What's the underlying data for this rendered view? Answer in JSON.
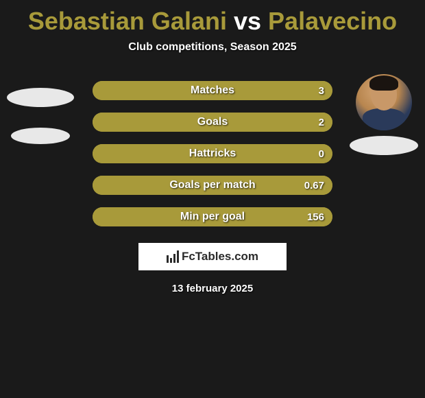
{
  "title": {
    "player1": "Sebastian Galani",
    "vs": "vs",
    "player2": "Palavecino",
    "color_player": "#a89a3a",
    "color_vs": "#ffffff"
  },
  "subtitle": "Club competitions, Season 2025",
  "stats": [
    {
      "label": "Matches",
      "value_left": "",
      "value_right": "3",
      "fill_color": "#a89a3a",
      "fill_width_pct": 100
    },
    {
      "label": "Goals",
      "value_left": "",
      "value_right": "2",
      "fill_color": "#a89a3a",
      "fill_width_pct": 100
    },
    {
      "label": "Hattricks",
      "value_left": "",
      "value_right": "0",
      "fill_color": "#a89a3a",
      "fill_width_pct": 100
    },
    {
      "label": "Goals per match",
      "value_left": "",
      "value_right": "0.67",
      "fill_color": "#a89a3a",
      "fill_width_pct": 100
    },
    {
      "label": "Min per goal",
      "value_left": "",
      "value_right": "156",
      "fill_color": "#a89a3a",
      "fill_width_pct": 100
    }
  ],
  "logo": {
    "text": "FcTables.com",
    "bar_heights": [
      11,
      7,
      13,
      18
    ]
  },
  "date": "13 february 2025",
  "background_color": "#1a1a1a"
}
